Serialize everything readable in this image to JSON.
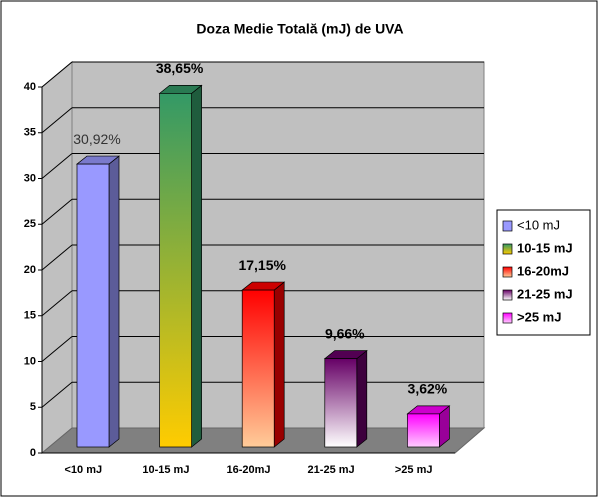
{
  "chart_data": {
    "type": "bar3d",
    "title": "Doza Medie Totală (mJ) de UVA",
    "categories": [
      "<10 mJ",
      "10-15 mJ",
      "16-20mJ",
      "21-25 mJ",
      ">25 mJ"
    ],
    "values": [
      30.92,
      38.65,
      17.15,
      9.66,
      3.62
    ],
    "value_labels": [
      "30,92%",
      "38,65%",
      "17,15%",
      "9,66%",
      "3,62%"
    ],
    "colors": [
      "#9999ff",
      "#339966",
      "#ff0000",
      "#660066",
      "#ff00ff"
    ],
    "gradient_colors": [
      "#9999ff",
      "#ffcc00",
      "#ffcc99",
      "#ffffff",
      "#ffccff"
    ],
    "ylim": [
      0,
      40
    ],
    "yticks": [
      0,
      5,
      10,
      15,
      20,
      25,
      30,
      35,
      40
    ],
    "grid": true,
    "legend": "right"
  }
}
